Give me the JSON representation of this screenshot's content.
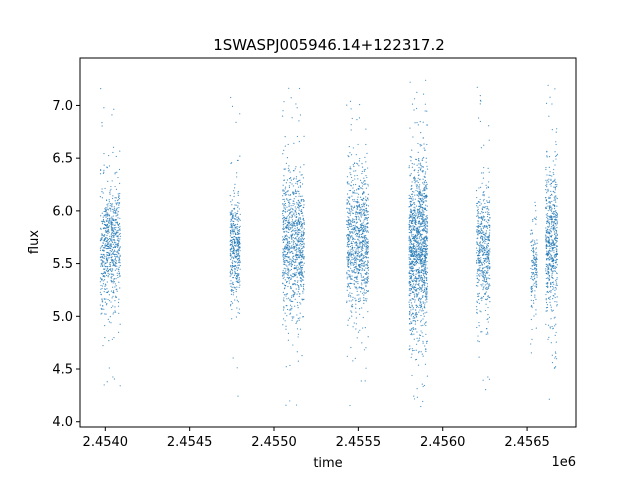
{
  "chart_data": {
    "type": "scatter",
    "title": "1SWASPJ005946.14+122317.2",
    "xlabel": "time",
    "ylabel": "flux",
    "x_offset_label": "1e6",
    "xlim": [
      2453850,
      2456790
    ],
    "ylim": [
      3.95,
      7.45
    ],
    "x_ticks": [
      2454000,
      2454500,
      2455000,
      2455500,
      2456000,
      2456500
    ],
    "x_tick_labels": [
      "2.4540",
      "2.4545",
      "2.4550",
      "2.4555",
      "2.4560",
      "2.4565"
    ],
    "y_ticks": [
      4.0,
      4.5,
      5.0,
      5.5,
      6.0,
      6.5,
      7.0
    ],
    "y_tick_labels": [
      "4.0",
      "4.5",
      "5.0",
      "5.5",
      "6.0",
      "6.5",
      "7.0"
    ],
    "grid": false,
    "legend": "none",
    "marker_color": "#1f77b4",
    "series": [
      {
        "clusters": [
          {
            "x_range": [
              2453970,
              2454090
            ],
            "y_mean": 5.65,
            "y_spread": 0.3,
            "y_min": 4.15,
            "y_max": 7.25,
            "n": 700
          },
          {
            "x_range": [
              2454740,
              2454800
            ],
            "y_mean": 5.65,
            "y_spread": 0.25,
            "y_min": 4.2,
            "y_max": 7.2,
            "n": 400
          },
          {
            "x_range": [
              2455050,
              2455180
            ],
            "y_mean": 5.7,
            "y_spread": 0.35,
            "y_min": 4.1,
            "y_max": 7.2,
            "n": 900
          },
          {
            "x_range": [
              2455430,
              2455560
            ],
            "y_mean": 5.7,
            "y_spread": 0.35,
            "y_min": 4.15,
            "y_max": 7.1,
            "n": 900
          },
          {
            "x_range": [
              2455800,
              2455910
            ],
            "y_mean": 5.65,
            "y_spread": 0.4,
            "y_min": 4.1,
            "y_max": 7.28,
            "n": 1300
          },
          {
            "x_range": [
              2456200,
              2456280
            ],
            "y_mean": 5.65,
            "y_spread": 0.3,
            "y_min": 4.3,
            "y_max": 7.2,
            "n": 500
          },
          {
            "x_range": [
              2456520,
              2456560
            ],
            "y_mean": 5.5,
            "y_spread": 0.2,
            "y_min": 4.6,
            "y_max": 6.2,
            "n": 150
          },
          {
            "x_range": [
              2456610,
              2456680
            ],
            "y_mean": 5.75,
            "y_spread": 0.35,
            "y_min": 4.2,
            "y_max": 7.25,
            "n": 600
          }
        ]
      }
    ]
  }
}
